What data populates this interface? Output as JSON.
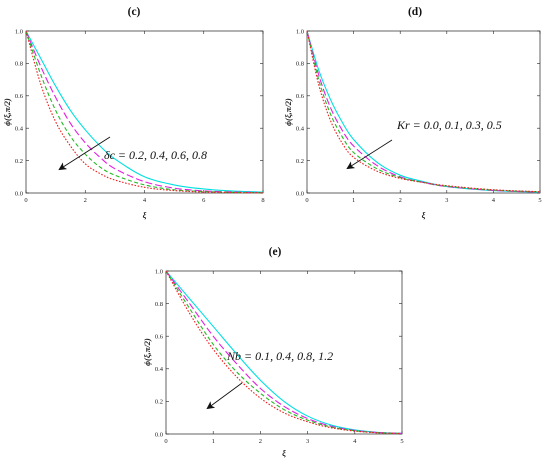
{
  "chart_data": [
    {
      "type": "line",
      "panel_label": "(c)",
      "xlabel": "ξ",
      "ylabel": "ϕ(ξ,π/2)",
      "xlim": [
        0,
        8
      ],
      "ylim": [
        0,
        1
      ],
      "xticks": [
        0,
        2,
        4,
        6,
        8
      ],
      "yticks": [
        0.0,
        0.2,
        0.4,
        0.6,
        0.8,
        1.0
      ],
      "annotation": "δc = 0.2, 0.4, 0.6, 0.8",
      "annotation_arrow": "diagonal arrow toward lower-left, in the direction of increasing δc",
      "series": [
        {
          "color": "#00e0e0",
          "dash": "solid",
          "x": [
            0,
            0.5,
            1,
            1.5,
            2,
            2.5,
            3,
            4,
            5,
            6,
            7,
            8
          ],
          "y": [
            1.0,
            0.83,
            0.66,
            0.51,
            0.39,
            0.29,
            0.21,
            0.1,
            0.05,
            0.025,
            0.012,
            0.006
          ]
        },
        {
          "color": "#e020e0",
          "dash": "long",
          "x": [
            0,
            0.5,
            1,
            1.5,
            2,
            2.5,
            3,
            4,
            5,
            6,
            7,
            8
          ],
          "y": [
            1.0,
            0.78,
            0.59,
            0.43,
            0.31,
            0.22,
            0.15,
            0.07,
            0.03,
            0.013,
            0.006,
            0.003
          ]
        },
        {
          "color": "#22bb22",
          "dash": "medium",
          "x": [
            0,
            0.5,
            1,
            1.5,
            2,
            2.5,
            3,
            4,
            5,
            6,
            7,
            8
          ],
          "y": [
            1.0,
            0.73,
            0.51,
            0.35,
            0.24,
            0.16,
            0.11,
            0.05,
            0.02,
            0.009,
            0.004,
            0.002
          ]
        },
        {
          "color": "#ee2020",
          "dash": "dotted",
          "x": [
            0,
            0.5,
            1,
            1.5,
            2,
            2.5,
            3,
            4,
            5,
            6,
            7,
            8
          ],
          "y": [
            1.0,
            0.67,
            0.44,
            0.29,
            0.18,
            0.12,
            0.08,
            0.035,
            0.015,
            0.006,
            0.003,
            0.001
          ]
        }
      ]
    },
    {
      "type": "line",
      "panel_label": "(d)",
      "xlabel": "ξ",
      "ylabel": "ϕ(ξ,π/2)",
      "xlim": [
        0,
        5
      ],
      "ylim": [
        0,
        1
      ],
      "xticks": [
        0,
        1,
        2,
        3,
        4,
        5
      ],
      "yticks": [
        0.0,
        0.2,
        0.4,
        0.6,
        0.8,
        1.0
      ],
      "annotation": "Kr = 0.0, 0.1, 0.3, 0.5",
      "annotation_arrow": "diagonal arrow toward lower-left, in the direction of increasing Kr",
      "series": [
        {
          "color": "#00e0e0",
          "dash": "solid",
          "x": [
            0,
            0.25,
            0.5,
            0.75,
            1,
            1.5,
            2,
            2.5,
            3,
            4,
            5
          ],
          "y": [
            1.0,
            0.76,
            0.58,
            0.44,
            0.33,
            0.19,
            0.11,
            0.07,
            0.04,
            0.015,
            0.005
          ]
        },
        {
          "color": "#e020e0",
          "dash": "long",
          "x": [
            0,
            0.25,
            0.5,
            0.75,
            1,
            1.5,
            2,
            2.5,
            3,
            4,
            5
          ],
          "y": [
            1.0,
            0.73,
            0.53,
            0.39,
            0.29,
            0.17,
            0.1,
            0.065,
            0.04,
            0.016,
            0.006
          ]
        },
        {
          "color": "#22bb22",
          "dash": "medium",
          "x": [
            0,
            0.25,
            0.5,
            0.75,
            1,
            1.5,
            2,
            2.5,
            3,
            4,
            5
          ],
          "y": [
            1.0,
            0.7,
            0.49,
            0.35,
            0.25,
            0.15,
            0.095,
            0.065,
            0.042,
            0.018,
            0.007
          ]
        },
        {
          "color": "#ee2020",
          "dash": "dotted",
          "x": [
            0,
            0.25,
            0.5,
            0.75,
            1,
            1.5,
            2,
            2.5,
            3,
            4,
            5
          ],
          "y": [
            1.0,
            0.67,
            0.45,
            0.31,
            0.22,
            0.135,
            0.09,
            0.065,
            0.045,
            0.02,
            0.008
          ]
        }
      ]
    },
    {
      "type": "line",
      "panel_label": "(e)",
      "xlabel": "ξ",
      "ylabel": "ϕ(ξ,π/2)",
      "xlim": [
        0,
        5
      ],
      "ylim": [
        0,
        1
      ],
      "xticks": [
        0,
        1,
        2,
        3,
        4,
        5
      ],
      "yticks": [
        0.0,
        0.2,
        0.4,
        0.6,
        0.8,
        1.0
      ],
      "annotation": "Nb = 0.1, 0.4, 0.8, 1.2",
      "annotation_arrow": "diagonal arrow toward lower-left, in the direction of increasing Nb",
      "series": [
        {
          "color": "#00e0e0",
          "dash": "solid",
          "x": [
            0,
            0.5,
            1,
            1.5,
            2,
            2.5,
            3,
            3.5,
            4,
            4.5,
            5
          ],
          "y": [
            1.0,
            0.83,
            0.66,
            0.49,
            0.33,
            0.2,
            0.11,
            0.055,
            0.025,
            0.01,
            0.004
          ]
        },
        {
          "color": "#e020e0",
          "dash": "long",
          "x": [
            0,
            0.5,
            1,
            1.5,
            2,
            2.5,
            3,
            3.5,
            4,
            4.5,
            5
          ],
          "y": [
            1.0,
            0.8,
            0.6,
            0.43,
            0.28,
            0.17,
            0.095,
            0.048,
            0.022,
            0.009,
            0.004
          ]
        },
        {
          "color": "#22bb22",
          "dash": "medium",
          "x": [
            0,
            0.5,
            1,
            1.5,
            2,
            2.5,
            3,
            3.5,
            4,
            4.5,
            5
          ],
          "y": [
            1.0,
            0.77,
            0.55,
            0.38,
            0.25,
            0.15,
            0.085,
            0.043,
            0.02,
            0.008,
            0.003
          ]
        },
        {
          "color": "#ee2020",
          "dash": "dotted",
          "x": [
            0,
            0.5,
            1,
            1.5,
            2,
            2.5,
            3,
            3.5,
            4,
            4.5,
            5
          ],
          "y": [
            1.0,
            0.74,
            0.52,
            0.35,
            0.22,
            0.13,
            0.075,
            0.038,
            0.018,
            0.007,
            0.003
          ]
        }
      ]
    }
  ]
}
